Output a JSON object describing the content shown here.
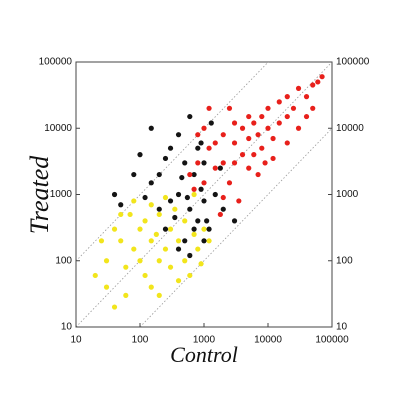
{
  "chart_data": {
    "type": "scatter",
    "x_label": "Control",
    "y_label": "Treated",
    "log_x": true,
    "log_y": true,
    "xlim": [
      10,
      100000
    ],
    "ylim": [
      10,
      100000
    ],
    "xticks": [
      10,
      100,
      1000,
      10000,
      100000
    ],
    "yticks": [
      10,
      100,
      1000,
      10000,
      100000
    ],
    "series": [
      {
        "color": "#f2e51c",
        "x": [
          20,
          30,
          40,
          50,
          60,
          70,
          80,
          100,
          100,
          120,
          150,
          150,
          200,
          200,
          250,
          300,
          300,
          400,
          500,
          500,
          600,
          700,
          800,
          1000,
          30,
          50,
          80,
          150,
          200,
          400,
          25,
          60,
          120,
          350,
          700,
          900,
          40,
          180,
          250,
          1200
        ],
        "values": [
          60,
          100,
          300,
          200,
          80,
          500,
          150,
          100,
          300,
          60,
          200,
          40,
          100,
          500,
          150,
          80,
          300,
          200,
          100,
          400,
          60,
          250,
          150,
          300,
          40,
          500,
          800,
          700,
          30,
          50,
          200,
          30,
          400,
          600,
          1000,
          90,
          20,
          250,
          900,
          200
        ]
      },
      {
        "color": "#141414",
        "x": [
          200,
          300,
          400,
          500,
          600,
          700,
          800,
          900,
          1000,
          1200,
          300,
          250,
          150,
          100,
          50,
          400,
          600,
          800,
          1000,
          1500,
          2000,
          500,
          700,
          350,
          450,
          200,
          120,
          900,
          1300,
          150,
          80,
          1100,
          1800,
          600,
          400,
          1000,
          3000,
          40,
          250,
          550
        ],
        "values": [
          2000,
          5000,
          1000,
          3000,
          600,
          2000,
          400,
          1200,
          800,
          300,
          800,
          300,
          1500,
          4000,
          700,
          8000,
          15000,
          5000,
          3000,
          1000,
          600,
          200,
          300,
          450,
          1800,
          600,
          900,
          6000,
          12000,
          10000,
          2000,
          400,
          2500,
          120,
          150,
          200,
          400,
          1000,
          3500,
          900
        ]
      },
      {
        "color": "#e8201b",
        "x": [
          800,
          1000,
          1200,
          1500,
          2000,
          2000,
          2500,
          3000,
          3000,
          4000,
          4000,
          5000,
          5000,
          6000,
          6000,
          7000,
          8000,
          8000,
          10000,
          10000,
          12000,
          15000,
          15000,
          20000,
          20000,
          25000,
          30000,
          40000,
          50000,
          70000,
          60000,
          3500,
          2000,
          1500,
          1000,
          1200,
          800,
          700,
          9000,
          20000,
          30000,
          40000,
          5000,
          3000,
          2500,
          7000,
          1800,
          12000,
          600,
          50000
        ],
        "values": [
          3000,
          1500,
          5000,
          2500,
          8000,
          3000,
          1500,
          6000,
          3000,
          10000,
          4000,
          2500,
          7000,
          12000,
          4000,
          8000,
          15000,
          5000,
          10000,
          20000,
          7000,
          25000,
          12000,
          15000,
          30000,
          20000,
          40000,
          30000,
          45000,
          60000,
          50000,
          800,
          900,
          6000,
          10000,
          20000,
          8000,
          1200,
          3000,
          6000,
          10000,
          15000,
          15000,
          12000,
          20000,
          2000,
          500,
          3500,
          2000,
          20000
        ]
      }
    ]
  }
}
